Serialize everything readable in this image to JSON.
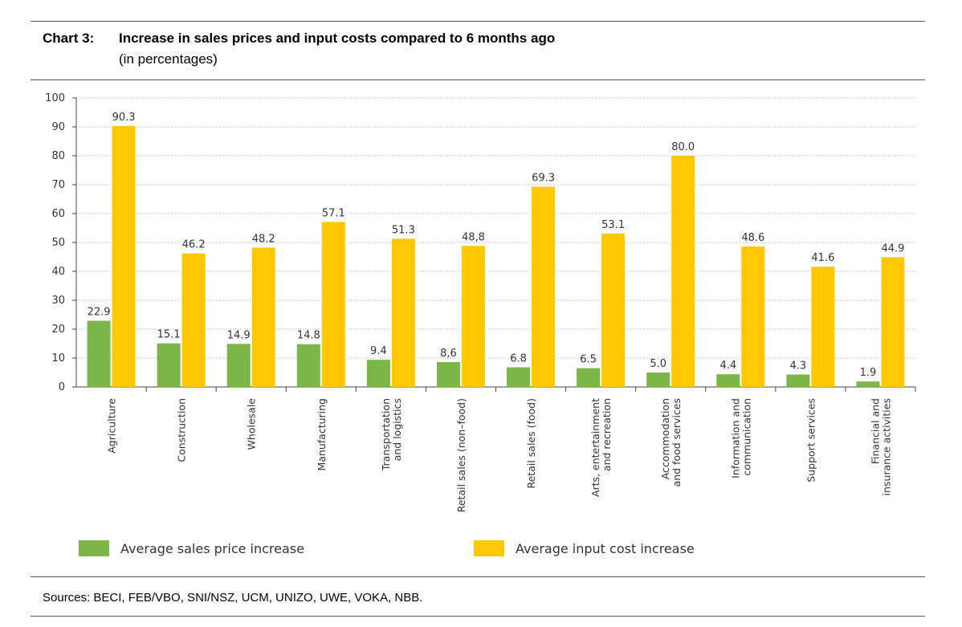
{
  "header": {
    "chart_number": "Chart 3:",
    "title": "Increase in sales prices and input costs compared to 6 months ago",
    "subtitle": "(in percentages)"
  },
  "footer": {
    "sources": "Sources: BECI, FEB/VBO, SNI/NSZ, UCM, UNIZO, UWE, VOKA, NBB."
  },
  "colors": {
    "sales": "#7AB648",
    "input": "#FFC800"
  },
  "chart_data": {
    "type": "bar",
    "title": "Increase in sales prices and input costs compared to 6 months ago",
    "subtitle": "(in percentages)",
    "xlabel": "",
    "ylabel": "",
    "ylim": [
      0,
      100
    ],
    "yticks": [
      0,
      10,
      20,
      30,
      40,
      50,
      60,
      70,
      80,
      90,
      100
    ],
    "grid": true,
    "legend_position": "bottom",
    "categories": [
      [
        "Agriculture"
      ],
      [
        "Construction"
      ],
      [
        "Wholesale"
      ],
      [
        "Manufacturing"
      ],
      [
        "Transportation",
        "and logistics"
      ],
      [
        "Retail sales (non–food)"
      ],
      [
        "Retail sales (food)"
      ],
      [
        "Arts, entertainment",
        "and recreation"
      ],
      [
        "Accommodation",
        "and food services"
      ],
      [
        "Information and",
        "communication"
      ],
      [
        "Support services"
      ],
      [
        "Financial and",
        "insurance activities"
      ]
    ],
    "series": [
      {
        "name": "Average sales price increase",
        "values": [
          22.9,
          15.1,
          14.9,
          14.8,
          9.4,
          8.6,
          6.8,
          6.5,
          5.0,
          4.4,
          4.3,
          1.9
        ],
        "labels": [
          "22.9",
          "15.1",
          "14.9",
          "14.8",
          "9.4",
          "8,6",
          "6.8",
          "6.5",
          "5.0",
          "4.4",
          "4.3",
          "1.9"
        ]
      },
      {
        "name": "Average input cost increase",
        "values": [
          90.3,
          46.2,
          48.2,
          57.1,
          51.3,
          48.8,
          69.3,
          53.1,
          80.0,
          48.6,
          41.6,
          44.9
        ],
        "labels": [
          "90.3",
          "46.2",
          "48.2",
          "57.1",
          "51.3",
          "48,8",
          "69.3",
          "53.1",
          "80.0",
          "48.6",
          "41.6",
          "44.9"
        ]
      }
    ]
  }
}
